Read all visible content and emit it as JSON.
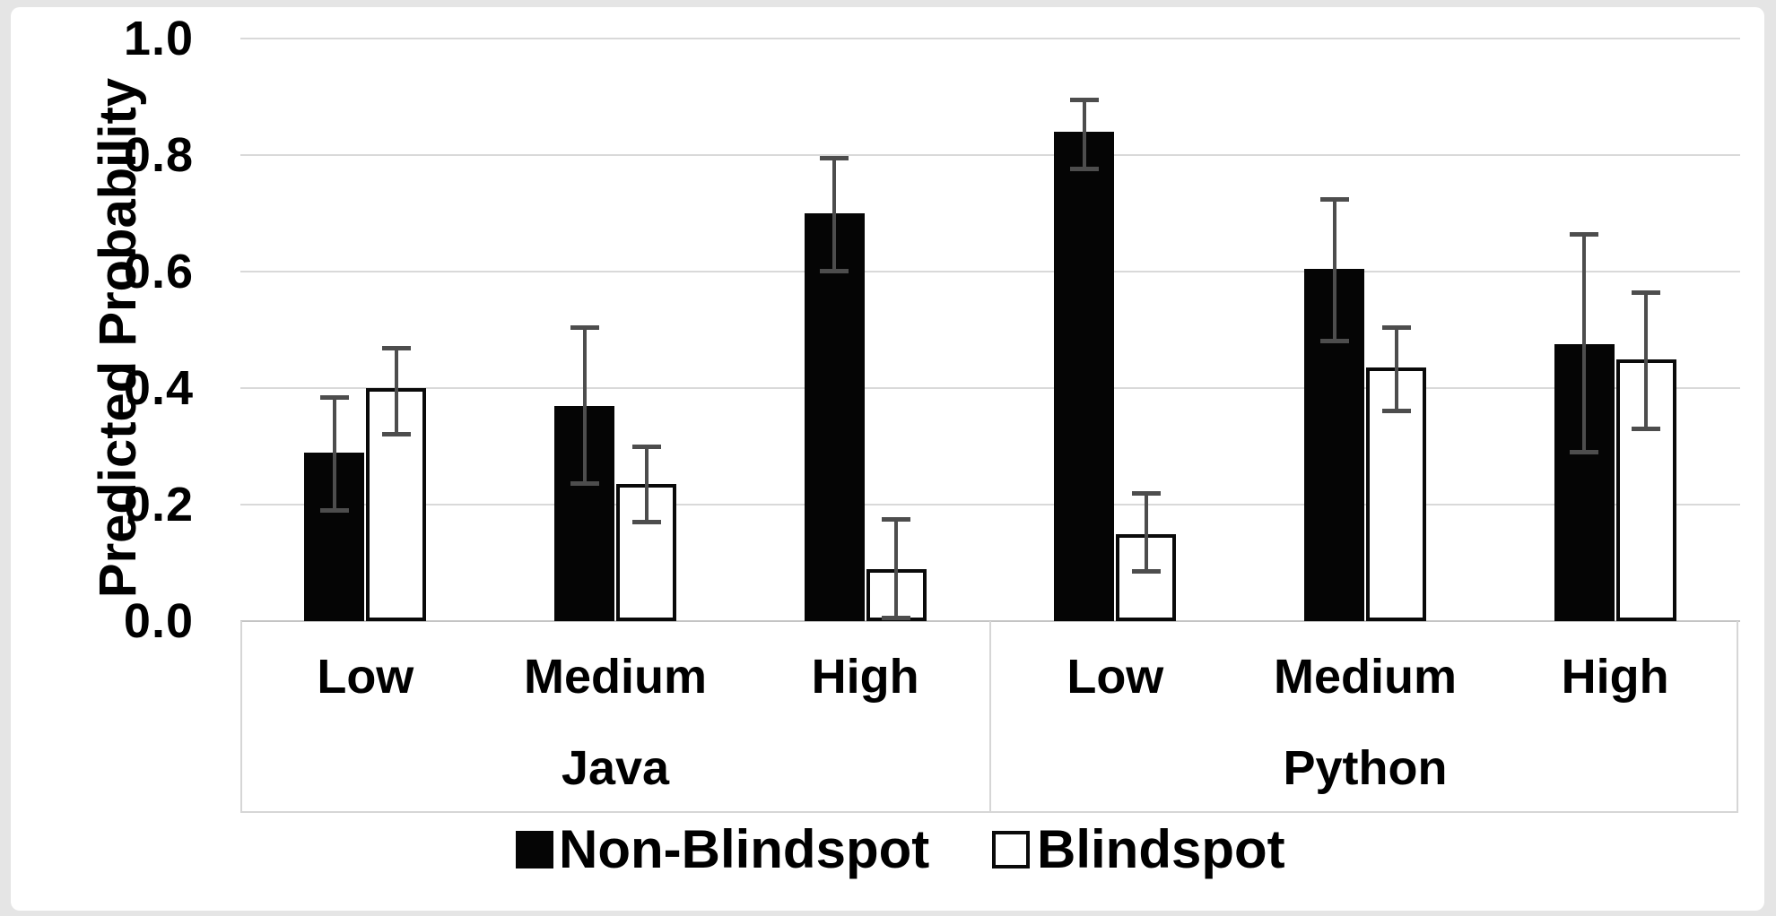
{
  "figure": {
    "frame_color": "#e5e5e5",
    "background": "#ffffff",
    "gridline_color": "#d9d9d9",
    "axis_line_color": "#c4c4c4",
    "error_bar_color": "#4d4d4d",
    "bar_fill_non_blindspot": "#050505",
    "bar_fill_blindspot": "#ffffff",
    "bar_border_color": "#0a0a0a",
    "text_color": "#000000"
  },
  "chart_data": {
    "type": "bar",
    "title": "",
    "xlabel": "",
    "ylabel": "Predicted Probability",
    "ylim": [
      0.0,
      1.0
    ],
    "ytick_interval": 0.2,
    "yticks": [
      {
        "label": "1.0",
        "value": 1.0
      },
      {
        "label": "0.8",
        "value": 0.8
      },
      {
        "label": "0.6",
        "value": 0.6
      },
      {
        "label": "0.4",
        "value": 0.4
      },
      {
        "label": "0.2",
        "value": 0.2
      },
      {
        "label": "0.0",
        "value": 0.0
      }
    ],
    "grid": "horizontal-on",
    "legend_position": "bottom",
    "group_labels": [
      "Java",
      "Python"
    ],
    "categories": [
      "Low",
      "Medium",
      "High",
      "Low",
      "Medium",
      "High"
    ],
    "legend": {
      "entries": [
        {
          "label": "Non-Blindspot",
          "fill": "black"
        },
        {
          "label": "Blindspot",
          "fill": "white"
        }
      ]
    },
    "series": [
      {
        "name": "Non-Blindspot",
        "values": [
          0.29,
          0.37,
          0.7,
          0.84,
          0.605,
          0.475
        ],
        "error_low": [
          0.19,
          0.235,
          0.6,
          0.775,
          0.48,
          0.29
        ],
        "error_high": [
          0.385,
          0.505,
          0.795,
          0.895,
          0.725,
          0.665
        ]
      },
      {
        "name": "Blindspot",
        "values": [
          0.4,
          0.235,
          0.09,
          0.15,
          0.435,
          0.45
        ],
        "error_low": [
          0.32,
          0.17,
          0.005,
          0.085,
          0.36,
          0.33
        ],
        "error_high": [
          0.47,
          0.3,
          0.175,
          0.22,
          0.505,
          0.565
        ]
      }
    ]
  }
}
